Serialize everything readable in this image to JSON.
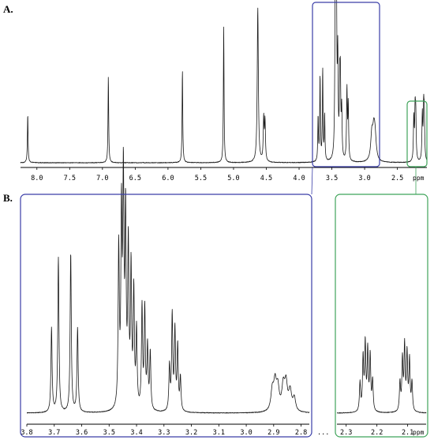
{
  "figure": {
    "panel_a_label": "A.",
    "panel_b_label": "B.",
    "unit_label": "ppm",
    "break_label": "...",
    "colors": {
      "blue_box": "#3a3ea8",
      "green_box": "#3fa45a",
      "trace": "#1a1a1a"
    }
  },
  "chart_data": [
    {
      "type": "line",
      "panel": "A",
      "xlabel": "ppm",
      "xlim": [
        8.25,
        2.05
      ],
      "x_reversed": true,
      "ticks": [
        8.0,
        7.5,
        7.0,
        6.5,
        6.0,
        5.5,
        5.0,
        4.5,
        4.0,
        3.5,
        3.0,
        2.5
      ],
      "tick_labels": [
        "8.0",
        "7.5",
        "7.0",
        "6.5",
        "6.0",
        "5.5",
        "5.0",
        "4.5",
        "4.0",
        "3.5",
        "3.0",
        "2.5"
      ],
      "peaks": [
        {
          "ppm": 8.14,
          "height": 0.31,
          "width": 0.006
        },
        {
          "ppm": 6.91,
          "height": 0.55,
          "width": 0.006
        },
        {
          "ppm": 5.78,
          "height": 0.59,
          "width": 0.006
        },
        {
          "ppm": 5.15,
          "height": 0.86,
          "width": 0.006
        },
        {
          "ppm": 4.63,
          "height": 0.98,
          "width": 0.01
        },
        {
          "ppm": 4.54,
          "height": 0.27,
          "width": 0.008
        },
        {
          "ppm": 4.52,
          "height": 0.25,
          "width": 0.008
        },
        {
          "ppm": 3.71,
          "height": 0.28,
          "width": 0.006
        },
        {
          "ppm": 3.68,
          "height": 0.54,
          "width": 0.006
        },
        {
          "ppm": 3.64,
          "height": 0.58,
          "width": 0.006
        },
        {
          "ppm": 3.61,
          "height": 0.29,
          "width": 0.006
        },
        {
          "ppm": 3.45,
          "height": 0.68,
          "width": 0.007
        },
        {
          "ppm": 3.44,
          "height": 0.97,
          "width": 0.007
        },
        {
          "ppm": 3.43,
          "height": 0.82,
          "width": 0.007
        },
        {
          "ppm": 3.41,
          "height": 0.6,
          "width": 0.007
        },
        {
          "ppm": 3.38,
          "height": 0.43,
          "width": 0.007
        },
        {
          "ppm": 3.37,
          "height": 0.44,
          "width": 0.007
        },
        {
          "ppm": 3.35,
          "height": 0.3,
          "width": 0.007
        },
        {
          "ppm": 3.27,
          "height": 0.45,
          "width": 0.007
        },
        {
          "ppm": 3.25,
          "height": 0.35,
          "width": 0.007
        },
        {
          "ppm": 2.89,
          "height": 0.16,
          "width": 0.02
        },
        {
          "ppm": 2.86,
          "height": 0.17,
          "width": 0.02
        },
        {
          "ppm": 2.84,
          "height": 0.13,
          "width": 0.02
        },
        {
          "ppm": 2.25,
          "height": 0.27,
          "width": 0.007
        },
        {
          "ppm": 2.23,
          "height": 0.3,
          "width": 0.007
        },
        {
          "ppm": 2.22,
          "height": 0.27,
          "width": 0.007
        },
        {
          "ppm": 2.12,
          "height": 0.29,
          "width": 0.007
        },
        {
          "ppm": 2.1,
          "height": 0.31,
          "width": 0.007
        },
        {
          "ppm": 2.09,
          "height": 0.27,
          "width": 0.007
        }
      ]
    },
    {
      "type": "line",
      "panel": "B-left",
      "xlabel": "",
      "xlim": [
        3.8,
        2.77
      ],
      "x_reversed": true,
      "ticks": [
        3.8,
        3.7,
        3.6,
        3.5,
        3.4,
        3.3,
        3.2,
        3.1,
        3.0,
        2.9,
        2.8
      ],
      "tick_labels": [
        "3.8",
        "3.7",
        "3.6",
        "3.5",
        "3.4",
        "3.3",
        "3.2",
        "3.1",
        "3.0",
        "2.9",
        "2.8"
      ],
      "peaks": [
        {
          "ppm": 3.71,
          "height": 0.38,
          "width": 0.0025
        },
        {
          "ppm": 3.685,
          "height": 0.7,
          "width": 0.0025
        },
        {
          "ppm": 3.64,
          "height": 0.72,
          "width": 0.0025
        },
        {
          "ppm": 3.615,
          "height": 0.38,
          "width": 0.0025
        },
        {
          "ppm": 3.465,
          "height": 0.72,
          "width": 0.0025
        },
        {
          "ppm": 3.455,
          "height": 0.85,
          "width": 0.0025
        },
        {
          "ppm": 3.448,
          "height": 1.0,
          "width": 0.0025
        },
        {
          "ppm": 3.44,
          "height": 0.85,
          "width": 0.0025
        },
        {
          "ppm": 3.43,
          "height": 0.72,
          "width": 0.0025
        },
        {
          "ppm": 3.42,
          "height": 0.62,
          "width": 0.0025
        },
        {
          "ppm": 3.41,
          "height": 0.52,
          "width": 0.0025
        },
        {
          "ppm": 3.4,
          "height": 0.35,
          "width": 0.0025
        },
        {
          "ppm": 3.38,
          "height": 0.46,
          "width": 0.0025
        },
        {
          "ppm": 3.37,
          "height": 0.45,
          "width": 0.0025
        },
        {
          "ppm": 3.36,
          "height": 0.28,
          "width": 0.0025
        },
        {
          "ppm": 3.35,
          "height": 0.26,
          "width": 0.0025
        },
        {
          "ppm": 3.28,
          "height": 0.2,
          "width": 0.0025
        },
        {
          "ppm": 3.27,
          "height": 0.43,
          "width": 0.0025
        },
        {
          "ppm": 3.26,
          "height": 0.36,
          "width": 0.0025
        },
        {
          "ppm": 3.25,
          "height": 0.29,
          "width": 0.0025
        },
        {
          "ppm": 3.24,
          "height": 0.15,
          "width": 0.0025
        },
        {
          "ppm": 2.905,
          "height": 0.09,
          "width": 0.006
        },
        {
          "ppm": 2.895,
          "height": 0.12,
          "width": 0.006
        },
        {
          "ppm": 2.885,
          "height": 0.1,
          "width": 0.006
        },
        {
          "ppm": 2.865,
          "height": 0.11,
          "width": 0.006
        },
        {
          "ppm": 2.855,
          "height": 0.12,
          "width": 0.006
        },
        {
          "ppm": 2.84,
          "height": 0.09,
          "width": 0.006
        },
        {
          "ppm": 2.825,
          "height": 0.06,
          "width": 0.006
        }
      ]
    },
    {
      "type": "line",
      "panel": "B-right",
      "xlabel": "ppm",
      "xlim": [
        2.33,
        2.04
      ],
      "x_reversed": true,
      "ticks": [
        2.3,
        2.2,
        2.1
      ],
      "tick_labels": [
        "2.3",
        "2.2",
        "2.1"
      ],
      "peaks": [
        {
          "ppm": 2.255,
          "height": 0.13,
          "width": 0.0022
        },
        {
          "ppm": 2.245,
          "height": 0.24,
          "width": 0.0022
        },
        {
          "ppm": 2.238,
          "height": 0.3,
          "width": 0.0022
        },
        {
          "ppm": 2.23,
          "height": 0.27,
          "width": 0.0022
        },
        {
          "ppm": 2.222,
          "height": 0.25,
          "width": 0.0022
        },
        {
          "ppm": 2.214,
          "height": 0.14,
          "width": 0.0022
        },
        {
          "ppm": 2.125,
          "height": 0.13,
          "width": 0.0022
        },
        {
          "ppm": 2.117,
          "height": 0.23,
          "width": 0.0022
        },
        {
          "ppm": 2.11,
          "height": 0.29,
          "width": 0.0022
        },
        {
          "ppm": 2.102,
          "height": 0.26,
          "width": 0.0022
        },
        {
          "ppm": 2.094,
          "height": 0.23,
          "width": 0.0022
        },
        {
          "ppm": 2.086,
          "height": 0.13,
          "width": 0.0022
        }
      ]
    }
  ]
}
